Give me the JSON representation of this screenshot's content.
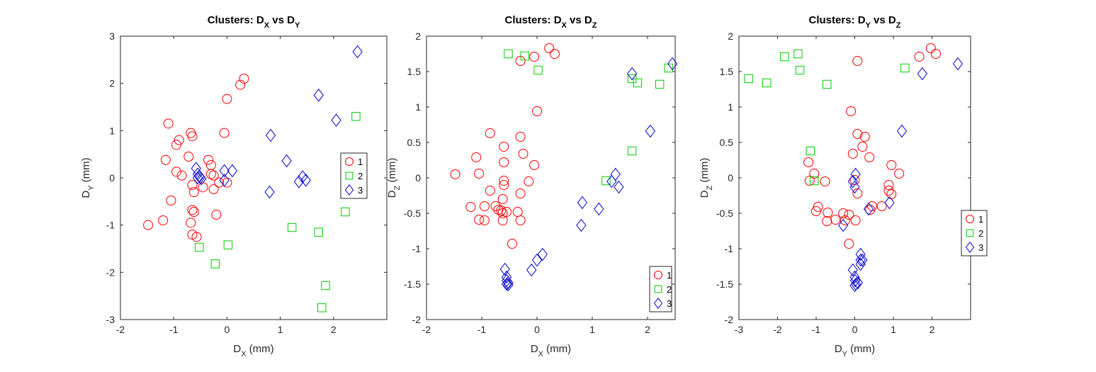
{
  "figure": {
    "background": "#ffffff"
  },
  "series_styles": [
    {
      "name": "1",
      "marker": "circle",
      "color": "#ff0000"
    },
    {
      "name": "2",
      "marker": "square",
      "color": "#00cc00"
    },
    {
      "name": "3",
      "marker": "diamond",
      "color": "#0000cc"
    }
  ],
  "chart_data": [
    {
      "type": "scatter",
      "title": "Clusters: D_X vs D_Y",
      "title_parts": [
        "Clusters: D",
        "X",
        " vs D",
        "Y"
      ],
      "xlabel": "D_X (mm)",
      "xlabel_parts": [
        "D",
        "X",
        " (mm)"
      ],
      "ylabel": "D_Y (mm)",
      "ylabel_parts": [
        "D",
        "Y",
        " (mm)"
      ],
      "xlim": [
        -2,
        3
      ],
      "ylim": [
        -3,
        3
      ],
      "xticks": [
        "-2",
        "-1",
        "0",
        "1",
        "2"
      ],
      "xtick_values": [
        -2,
        -1,
        0,
        1,
        2
      ],
      "yticks": [
        "-3",
        "-2",
        "-1",
        "0",
        "1",
        "2",
        "3"
      ],
      "ytick_values": [
        -3,
        -2,
        -1,
        0,
        1,
        2,
        3
      ],
      "legend": {
        "position": "right-middle",
        "entries": [
          "1",
          "2",
          "3"
        ]
      },
      "grid": false,
      "series": [
        {
          "name": "1",
          "points": [
            [
              -1.1,
              1.15
            ],
            [
              -0.95,
              0.7
            ],
            [
              -0.9,
              0.8
            ],
            [
              -1.15,
              0.38
            ],
            [
              -0.95,
              0.13
            ],
            [
              -0.85,
              0.05
            ],
            [
              -0.72,
              0.45
            ],
            [
              -0.68,
              0.95
            ],
            [
              -0.65,
              0.88
            ],
            [
              -0.35,
              0.38
            ],
            [
              -0.3,
              0.27
            ],
            [
              -0.3,
              0.08
            ],
            [
              -0.25,
              0.05
            ],
            [
              -0.25,
              -0.24
            ],
            [
              -0.45,
              -0.2
            ],
            [
              -0.15,
              -0.1
            ],
            [
              -0.65,
              -0.15
            ],
            [
              -0.62,
              -0.3
            ],
            [
              -0.2,
              -0.78
            ],
            [
              -0.65,
              -0.68
            ],
            [
              -0.62,
              -0.72
            ],
            [
              -0.68,
              -0.95
            ],
            [
              -0.65,
              -1.2
            ],
            [
              -0.57,
              -1.25
            ],
            [
              -1.05,
              -0.48
            ],
            [
              -1.2,
              -0.9
            ],
            [
              -1.48,
              -1.0
            ],
            [
              -0.05,
              0.95
            ],
            [
              0.0,
              1.67
            ],
            [
              0.25,
              1.97
            ],
            [
              0.32,
              2.1
            ],
            [
              0.0,
              -0.1
            ]
          ]
        },
        {
          "name": "2",
          "points": [
            [
              -0.52,
              -1.47
            ],
            [
              0.02,
              -1.42
            ],
            [
              -0.22,
              -1.82
            ],
            [
              1.22,
              -1.05
            ],
            [
              1.72,
              -1.15
            ],
            [
              2.22,
              -0.72
            ],
            [
              1.85,
              -2.28
            ],
            [
              1.78,
              -2.75
            ],
            [
              2.42,
              1.3
            ]
          ]
        },
        {
          "name": "3",
          "points": [
            [
              -0.58,
              0.2
            ],
            [
              -0.55,
              0.08
            ],
            [
              -0.52,
              0.03
            ],
            [
              -0.5,
              0.01
            ],
            [
              -0.48,
              -0.02
            ],
            [
              -0.55,
              0.0
            ],
            [
              -0.05,
              0.15
            ],
            [
              -0.05,
              -0.05
            ],
            [
              0.1,
              0.15
            ],
            [
              0.82,
              0.9
            ],
            [
              0.8,
              -0.3
            ],
            [
              1.12,
              0.36
            ],
            [
              1.35,
              -0.08
            ],
            [
              1.42,
              0.02
            ],
            [
              1.48,
              -0.05
            ],
            [
              1.72,
              1.75
            ],
            [
              2.05,
              1.22
            ],
            [
              2.45,
              2.67
            ]
          ]
        }
      ]
    },
    {
      "type": "scatter",
      "title": "Clusters: D_X vs D_Z",
      "title_parts": [
        "Clusters: D",
        "X",
        " vs D",
        "Z"
      ],
      "xlabel": "D_X (mm)",
      "xlabel_parts": [
        "D",
        "X",
        " (mm)"
      ],
      "ylabel": "D_Z (mm)",
      "ylabel_parts": [
        "D",
        "Z",
        " (mm)"
      ],
      "xlim": [
        -2,
        2.5
      ],
      "ylim": [
        -2,
        2
      ],
      "xticks": [
        "-2",
        "-1",
        "0",
        "1",
        "2"
      ],
      "xtick_values": [
        -2,
        -1,
        0,
        1,
        2
      ],
      "yticks": [
        "-2",
        "-1.5",
        "-1",
        "-0.5",
        "0",
        "0.5",
        "1",
        "1.5",
        "2"
      ],
      "ytick_values": [
        -2,
        -1.5,
        -1,
        -0.5,
        0,
        0.5,
        1,
        1.5,
        2
      ],
      "legend": {
        "position": "bottom-right",
        "entries": [
          "1",
          "2",
          "3"
        ]
      },
      "grid": false,
      "series": [
        {
          "name": "1",
          "points": [
            [
              0.22,
              1.83
            ],
            [
              0.32,
              1.75
            ],
            [
              -0.05,
              1.71
            ],
            [
              -0.3,
              1.65
            ],
            [
              0.0,
              0.94
            ],
            [
              -0.85,
              0.63
            ],
            [
              -0.3,
              0.58
            ],
            [
              -0.6,
              0.44
            ],
            [
              -0.25,
              0.34
            ],
            [
              -1.1,
              0.29
            ],
            [
              -0.6,
              0.22
            ],
            [
              -0.05,
              0.18
            ],
            [
              -1.48,
              0.05
            ],
            [
              -1.05,
              0.06
            ],
            [
              -0.6,
              -0.04
            ],
            [
              -0.15,
              -0.05
            ],
            [
              -0.6,
              -0.1
            ],
            [
              -0.85,
              -0.18
            ],
            [
              -0.3,
              -0.22
            ],
            [
              -0.62,
              -0.3
            ],
            [
              -0.95,
              -0.4
            ],
            [
              -0.75,
              -0.4
            ],
            [
              -1.2,
              -0.41
            ],
            [
              -0.65,
              -0.46
            ],
            [
              -0.7,
              -0.45
            ],
            [
              -0.62,
              -0.5
            ],
            [
              -0.55,
              -0.48
            ],
            [
              -0.35,
              -0.48
            ],
            [
              -1.05,
              -0.59
            ],
            [
              -0.95,
              -0.6
            ],
            [
              -0.62,
              -0.6
            ],
            [
              -0.3,
              -0.6
            ],
            [
              -0.45,
              -0.93
            ]
          ]
        },
        {
          "name": "2",
          "points": [
            [
              -0.52,
              1.75
            ],
            [
              -0.22,
              1.72
            ],
            [
              0.02,
              1.52
            ],
            [
              1.72,
              1.4
            ],
            [
              1.82,
              1.34
            ],
            [
              2.22,
              1.32
            ],
            [
              2.38,
              1.55
            ],
            [
              1.72,
              0.38
            ],
            [
              1.25,
              -0.04
            ]
          ]
        },
        {
          "name": "3",
          "points": [
            [
              1.72,
              1.47
            ],
            [
              2.45,
              1.61
            ],
            [
              2.05,
              0.66
            ],
            [
              1.42,
              0.05
            ],
            [
              1.35,
              -0.05
            ],
            [
              1.48,
              -0.13
            ],
            [
              0.82,
              -0.35
            ],
            [
              1.12,
              -0.44
            ],
            [
              0.8,
              -0.67
            ],
            [
              0.1,
              -1.08
            ],
            [
              0.0,
              -1.16
            ],
            [
              -0.1,
              -1.3
            ],
            [
              -0.58,
              -1.29
            ],
            [
              -0.55,
              -1.4
            ],
            [
              -0.55,
              -1.45
            ],
            [
              -0.52,
              -1.48
            ],
            [
              -0.55,
              -1.5
            ],
            [
              -0.52,
              -1.51
            ]
          ]
        }
      ]
    },
    {
      "type": "scatter",
      "title": "Clusters: D_Y vs D_Z",
      "title_parts": [
        "Clusters: D",
        "Y",
        " vs D",
        "Z"
      ],
      "xlabel": "D_Y (mm)",
      "xlabel_parts": [
        "D",
        "Y",
        " (mm)"
      ],
      "ylabel": "D_Z (mm)",
      "ylabel_parts": [
        "D",
        "Z",
        " (mm)"
      ],
      "xlim": [
        -3,
        3
      ],
      "ylim": [
        -2,
        2
      ],
      "xticks": [
        "-3",
        "-2",
        "-1",
        "0",
        "1",
        "2"
      ],
      "xtick_values": [
        -3,
        -2,
        -1,
        0,
        1,
        2
      ],
      "yticks": [
        "-2",
        "-1.5",
        "-1",
        "-0.5",
        "0",
        "0.5",
        "1",
        "1.5",
        "2"
      ],
      "ytick_values": [
        -2,
        -1.5,
        -1,
        -0.5,
        0,
        0.5,
        1,
        1.5,
        2
      ],
      "legend": {
        "position": "right-middle",
        "entries": [
          "1",
          "2",
          "3"
        ]
      },
      "grid": false,
      "series": [
        {
          "name": "1",
          "points": [
            [
              1.97,
              1.83
            ],
            [
              2.1,
              1.75
            ],
            [
              1.67,
              1.71
            ],
            [
              0.07,
              1.65
            ],
            [
              -0.1,
              0.94
            ],
            [
              0.07,
              0.62
            ],
            [
              0.26,
              0.58
            ],
            [
              0.2,
              0.44
            ],
            [
              0.0,
              -0.03
            ],
            [
              -0.05,
              0.34
            ],
            [
              0.38,
              0.29
            ],
            [
              0.95,
              0.18
            ],
            [
              1.15,
              0.06
            ],
            [
              -1.2,
              0.22
            ],
            [
              -1.05,
              0.06
            ],
            [
              -1.17,
              -0.04
            ],
            [
              -0.77,
              -0.05
            ],
            [
              0.07,
              -0.22
            ],
            [
              0.88,
              -0.1
            ],
            [
              0.88,
              -0.18
            ],
            [
              0.95,
              -0.23
            ],
            [
              0.45,
              -0.4
            ],
            [
              -0.3,
              -0.5
            ],
            [
              -1.0,
              -0.47
            ],
            [
              -0.95,
              -0.41
            ],
            [
              -0.7,
              -0.49
            ],
            [
              -0.15,
              -0.52
            ],
            [
              0.4,
              -0.45
            ],
            [
              0.7,
              -0.4
            ],
            [
              -0.5,
              -0.59
            ],
            [
              -0.72,
              -0.61
            ],
            [
              0.02,
              -0.6
            ],
            [
              -0.25,
              -0.6
            ],
            [
              -0.15,
              -0.93
            ]
          ]
        },
        {
          "name": "2",
          "points": [
            [
              -2.75,
              1.4
            ],
            [
              -2.28,
              1.34
            ],
            [
              -1.82,
              1.71
            ],
            [
              -1.47,
              1.75
            ],
            [
              -1.42,
              1.52
            ],
            [
              -0.72,
              1.32
            ],
            [
              1.3,
              1.55
            ],
            [
              -1.15,
              0.38
            ],
            [
              -1.05,
              -0.04
            ]
          ]
        },
        {
          "name": "3",
          "points": [
            [
              1.75,
              1.47
            ],
            [
              2.67,
              1.61
            ],
            [
              1.22,
              0.66
            ],
            [
              0.02,
              0.05
            ],
            [
              -0.05,
              -0.05
            ],
            [
              0.0,
              -0.13
            ],
            [
              0.36,
              -0.44
            ],
            [
              0.9,
              -0.35
            ],
            [
              -0.3,
              -0.67
            ],
            [
              0.15,
              -1.08
            ],
            [
              0.15,
              -1.16
            ],
            [
              0.15,
              -1.22
            ],
            [
              0.2,
              -1.16
            ],
            [
              -0.05,
              -1.3
            ],
            [
              0.0,
              -1.4
            ],
            [
              0.01,
              -1.45
            ],
            [
              0.03,
              -1.5
            ],
            [
              0.0,
              -1.52
            ],
            [
              0.08,
              -1.48
            ]
          ]
        }
      ]
    }
  ]
}
